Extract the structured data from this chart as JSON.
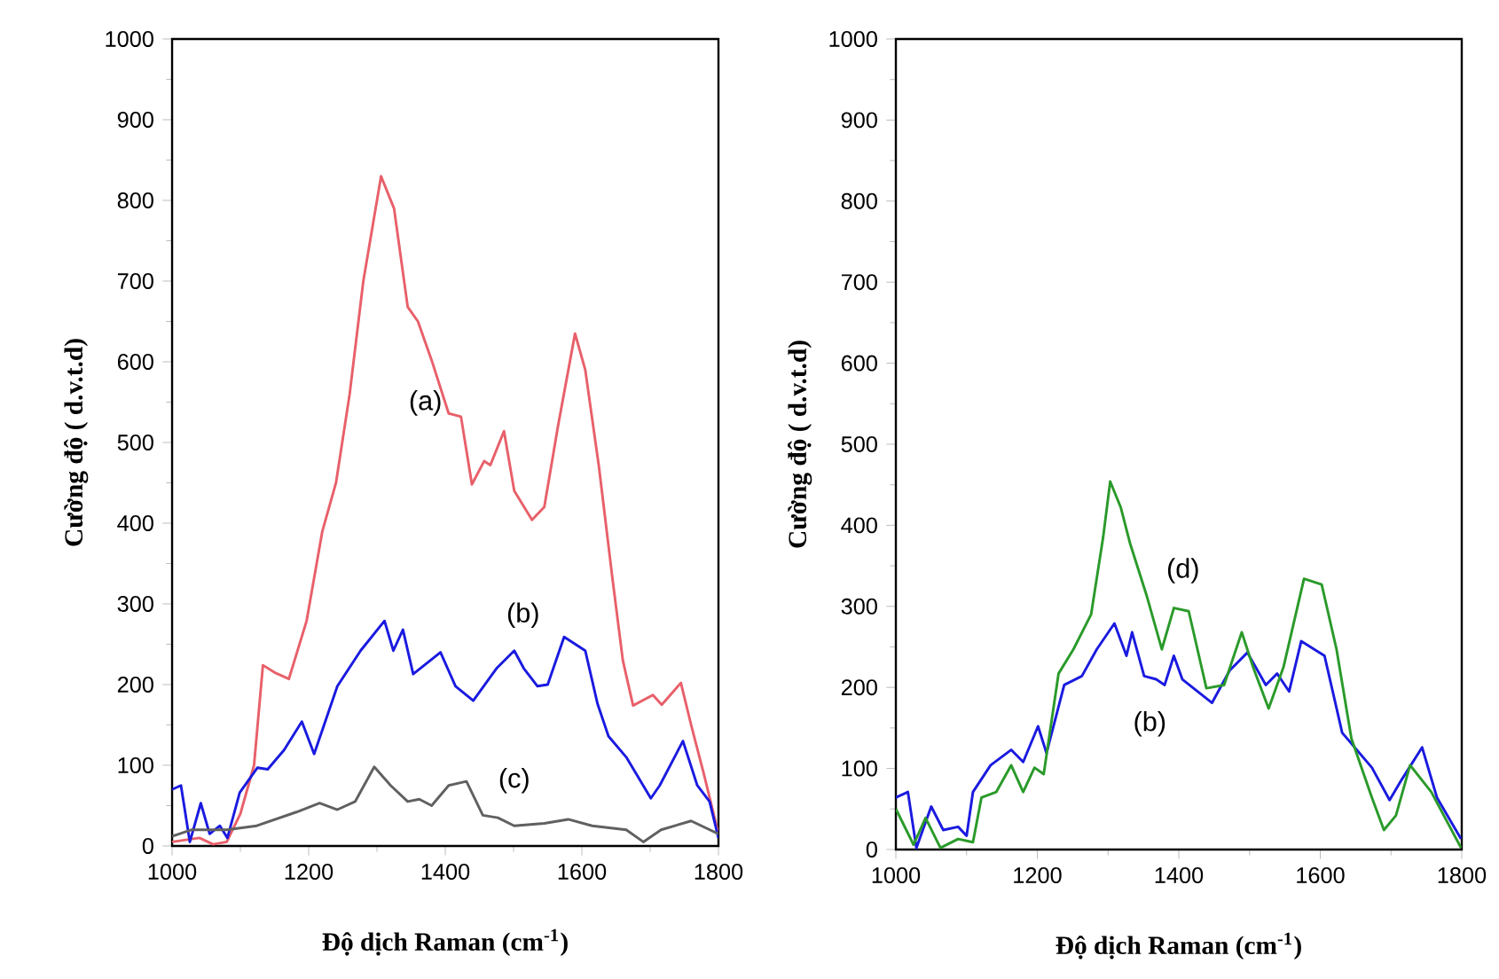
{
  "chart_data": [
    {
      "type": "line",
      "xlabel": "Độ dịch Raman (cm$^{-1}$)",
      "ylabel": "Cường độ ( d.v.t.d)",
      "xlim": [
        1000,
        1800
      ],
      "ylim": [
        0,
        1000
      ],
      "xticks": [
        1000,
        1200,
        1400,
        1600,
        1800
      ],
      "yticks": [
        0,
        100,
        200,
        300,
        400,
        500,
        600,
        700,
        800,
        900,
        1000
      ],
      "series": [
        {
          "name": "(a)",
          "color": "#e8606a",
          "x": [
            1000,
            1040,
            1060,
            1080,
            1100,
            1120,
            1133,
            1150,
            1171,
            1197,
            1220,
            1240,
            1260,
            1280,
            1306,
            1325,
            1345,
            1360,
            1380,
            1405,
            1423,
            1439,
            1457,
            1466,
            1486,
            1501,
            1527,
            1545,
            1565,
            1590,
            1605,
            1625,
            1645,
            1660,
            1675,
            1704,
            1717,
            1745,
            1760,
            1779,
            1800
          ],
          "values": [
            5,
            10,
            2,
            5,
            40,
            100,
            224,
            215,
            207,
            279,
            390,
            450,
            560,
            700,
            830,
            790,
            668,
            650,
            602,
            536,
            532,
            448,
            477,
            472,
            514,
            440,
            404,
            420,
            520,
            635,
            590,
            470,
            330,
            230,
            174,
            187,
            175,
            202,
            150,
            88,
            15
          ]
        },
        {
          "name": "(b)",
          "color": "#1a1ae0",
          "x": [
            1000,
            1013,
            1026,
            1042,
            1055,
            1070,
            1081,
            1099,
            1125,
            1140,
            1164,
            1190,
            1208,
            1242,
            1276,
            1311,
            1324,
            1338,
            1353,
            1393,
            1415,
            1441,
            1475,
            1501,
            1515,
            1535,
            1550,
            1574,
            1605,
            1623,
            1639,
            1665,
            1701,
            1714,
            1748,
            1769,
            1787,
            1800
          ],
          "values": [
            70,
            75,
            5,
            53,
            15,
            25,
            10,
            66,
            97,
            95,
            119,
            154,
            114,
            198,
            242,
            279,
            242,
            268,
            213,
            240,
            198,
            180,
            220,
            242,
            220,
            198,
            200,
            259,
            242,
            176,
            136,
            110,
            59,
            75,
            130,
            75,
            55,
            10
          ]
        },
        {
          "name": "(c)",
          "color": "#606060",
          "x": [
            1000,
            1028,
            1080,
            1124,
            1182,
            1216,
            1242,
            1268,
            1296,
            1320,
            1345,
            1362,
            1380,
            1405,
            1431,
            1455,
            1477,
            1501,
            1545,
            1580,
            1615,
            1665,
            1690,
            1716,
            1760,
            1800
          ],
          "values": [
            12,
            20,
            20,
            25,
            42,
            53,
            45,
            55,
            98,
            75,
            55,
            58,
            50,
            75,
            80,
            38,
            35,
            25,
            28,
            33,
            25,
            20,
            5,
            20,
            31,
            15
          ]
        }
      ],
      "legend": false
    },
    {
      "type": "line",
      "xlabel": "Độ dịch Raman (cm$^{-1}$)",
      "ylabel": "Cường độ ( d.v.t.d)",
      "xlim": [
        1000,
        1800
      ],
      "ylim": [
        0,
        1000
      ],
      "xticks": [
        1000,
        1200,
        1400,
        1600,
        1800
      ],
      "yticks": [
        0,
        100,
        200,
        300,
        400,
        500,
        600,
        700,
        800,
        900,
        1000
      ],
      "series": [
        {
          "name": "(b)",
          "color": "#1a1ae0",
          "x": [
            1000,
            1017,
            1029,
            1050,
            1067,
            1088,
            1100,
            1109,
            1134,
            1163,
            1180,
            1201,
            1213,
            1238,
            1263,
            1284,
            1309,
            1326,
            1334,
            1351,
            1368,
            1380,
            1393,
            1405,
            1447,
            1472,
            1497,
            1523,
            1539,
            1556,
            1573,
            1606,
            1631,
            1673,
            1698,
            1715,
            1744,
            1765,
            1799
          ],
          "values": [
            64,
            71,
            2,
            53,
            24,
            28,
            17,
            71,
            104,
            123,
            108,
            152,
            119,
            203,
            214,
            247,
            279,
            239,
            268,
            214,
            210,
            203,
            239,
            210,
            181,
            221,
            243,
            203,
            217,
            195,
            257,
            239,
            144,
            101,
            61,
            86,
            126,
            64,
            13
          ]
        },
        {
          "name": "(d)",
          "color": "#2a9a2a",
          "x": [
            1000,
            1025,
            1042,
            1063,
            1088,
            1109,
            1121,
            1142,
            1163,
            1180,
            1196,
            1209,
            1230,
            1251,
            1276,
            1293,
            1303,
            1318,
            1331,
            1355,
            1376,
            1393,
            1414,
            1439,
            1464,
            1489,
            1505,
            1527,
            1548,
            1577,
            1602,
            1623,
            1644,
            1673,
            1690,
            1707,
            1727,
            1757,
            1799
          ],
          "values": [
            50,
            6,
            39,
            2,
            13,
            9,
            64,
            71,
            104,
            71,
            101,
            93,
            217,
            247,
            290,
            385,
            454,
            422,
            378,
            312,
            247,
            298,
            294,
            199,
            203,
            268,
            225,
            174,
            225,
            334,
            327,
            247,
            137,
            64,
            24,
            42,
            104,
            71,
            2
          ]
        }
      ],
      "legend": false
    }
  ]
}
